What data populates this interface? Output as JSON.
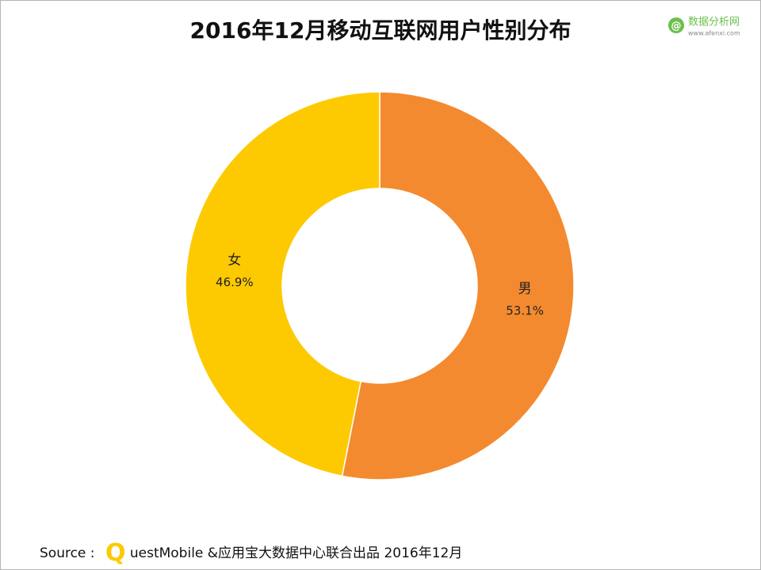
{
  "chart_data": {
    "type": "donut",
    "title": "2016年12月移动互联网用户性别分布",
    "categories": [
      "男",
      "女"
    ],
    "values": [
      53.1,
      46.9
    ],
    "value_labels": [
      "53.1%",
      "46.9%"
    ],
    "colors": [
      "#f48a2f",
      "#fdca02"
    ]
  },
  "logo": {
    "name": "数据分析网",
    "url": "www.afenxi.com"
  },
  "source": {
    "prefix": "Source :",
    "brand_initial": "Q",
    "brand_rest": "uestMobile",
    "text": "&应用宝大数据中心联合出品 2016年12月"
  }
}
